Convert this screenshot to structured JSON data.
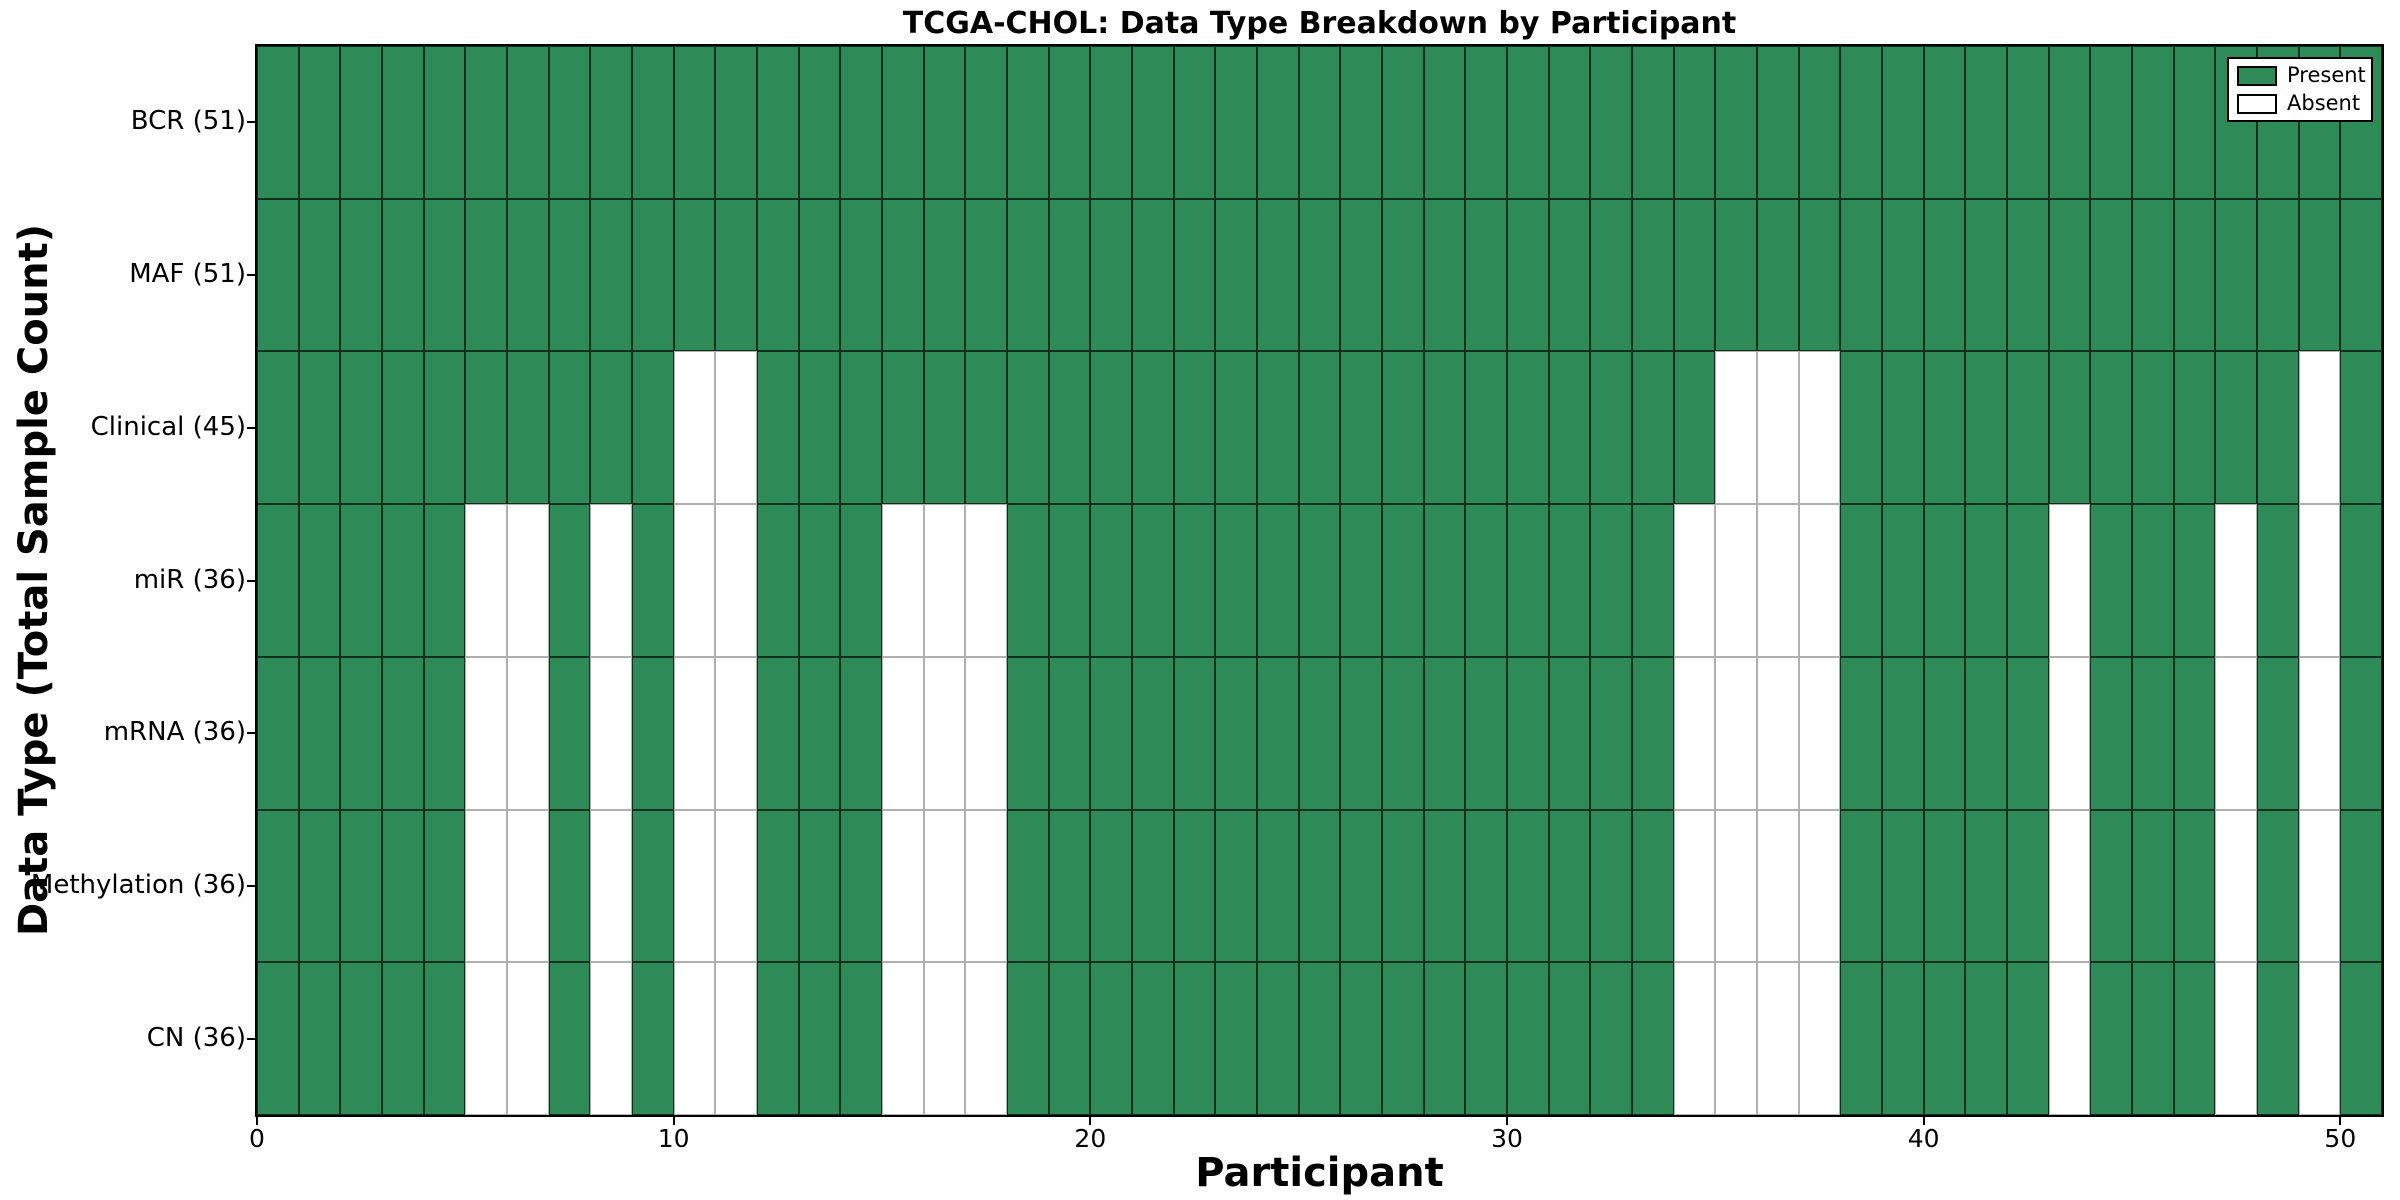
{
  "chart_data": {
    "type": "heatmap",
    "title": "TCGA-CHOL: Data Type Breakdown by Participant",
    "xlabel": "Participant",
    "ylabel": "Data Type (Total Sample Count)",
    "xlim": [
      0,
      51
    ],
    "n_participants": 51,
    "x_ticks": [
      0,
      10,
      20,
      30,
      40,
      50
    ],
    "grid": "cell-edges",
    "legend_position": "upper-right",
    "legend": [
      {
        "label": "Present",
        "color": "#2e8b57"
      },
      {
        "label": "Absent",
        "color": "#ffffff"
      }
    ],
    "rows": [
      {
        "label": "BCR (51)",
        "data_type": "BCR",
        "total_samples": 51,
        "absent_participants": []
      },
      {
        "label": "MAF (51)",
        "data_type": "MAF",
        "total_samples": 51,
        "absent_participants": []
      },
      {
        "label": "Clinical (45)",
        "data_type": "Clinical",
        "total_samples": 45,
        "absent_participants": [
          10,
          11,
          35,
          36,
          37,
          49
        ]
      },
      {
        "label": "miR (36)",
        "data_type": "miR",
        "total_samples": 36,
        "absent_participants": [
          5,
          6,
          8,
          10,
          11,
          15,
          16,
          17,
          34,
          35,
          36,
          37,
          43,
          47,
          49
        ]
      },
      {
        "label": "mRNA (36)",
        "data_type": "mRNA",
        "total_samples": 36,
        "absent_participants": [
          5,
          6,
          8,
          10,
          11,
          15,
          16,
          17,
          34,
          35,
          36,
          37,
          43,
          47,
          49
        ]
      },
      {
        "label": "Methylation (36)",
        "data_type": "Methylation",
        "total_samples": 36,
        "absent_participants": [
          5,
          6,
          8,
          10,
          11,
          15,
          16,
          17,
          34,
          35,
          36,
          37,
          43,
          47,
          49
        ]
      },
      {
        "label": "CN (36)",
        "data_type": "CN",
        "total_samples": 36,
        "absent_participants": [
          5,
          6,
          8,
          10,
          11,
          15,
          16,
          17,
          34,
          35,
          36,
          37,
          43,
          47,
          49
        ]
      }
    ],
    "colors": {
      "present": "#2e8b57",
      "absent": "#ffffff",
      "present_edge": "rgba(0,0,0,0.65)",
      "absent_edge": "#b0b0b0",
      "spine": "#000000",
      "text": "#000000",
      "background": "#ffffff"
    }
  }
}
